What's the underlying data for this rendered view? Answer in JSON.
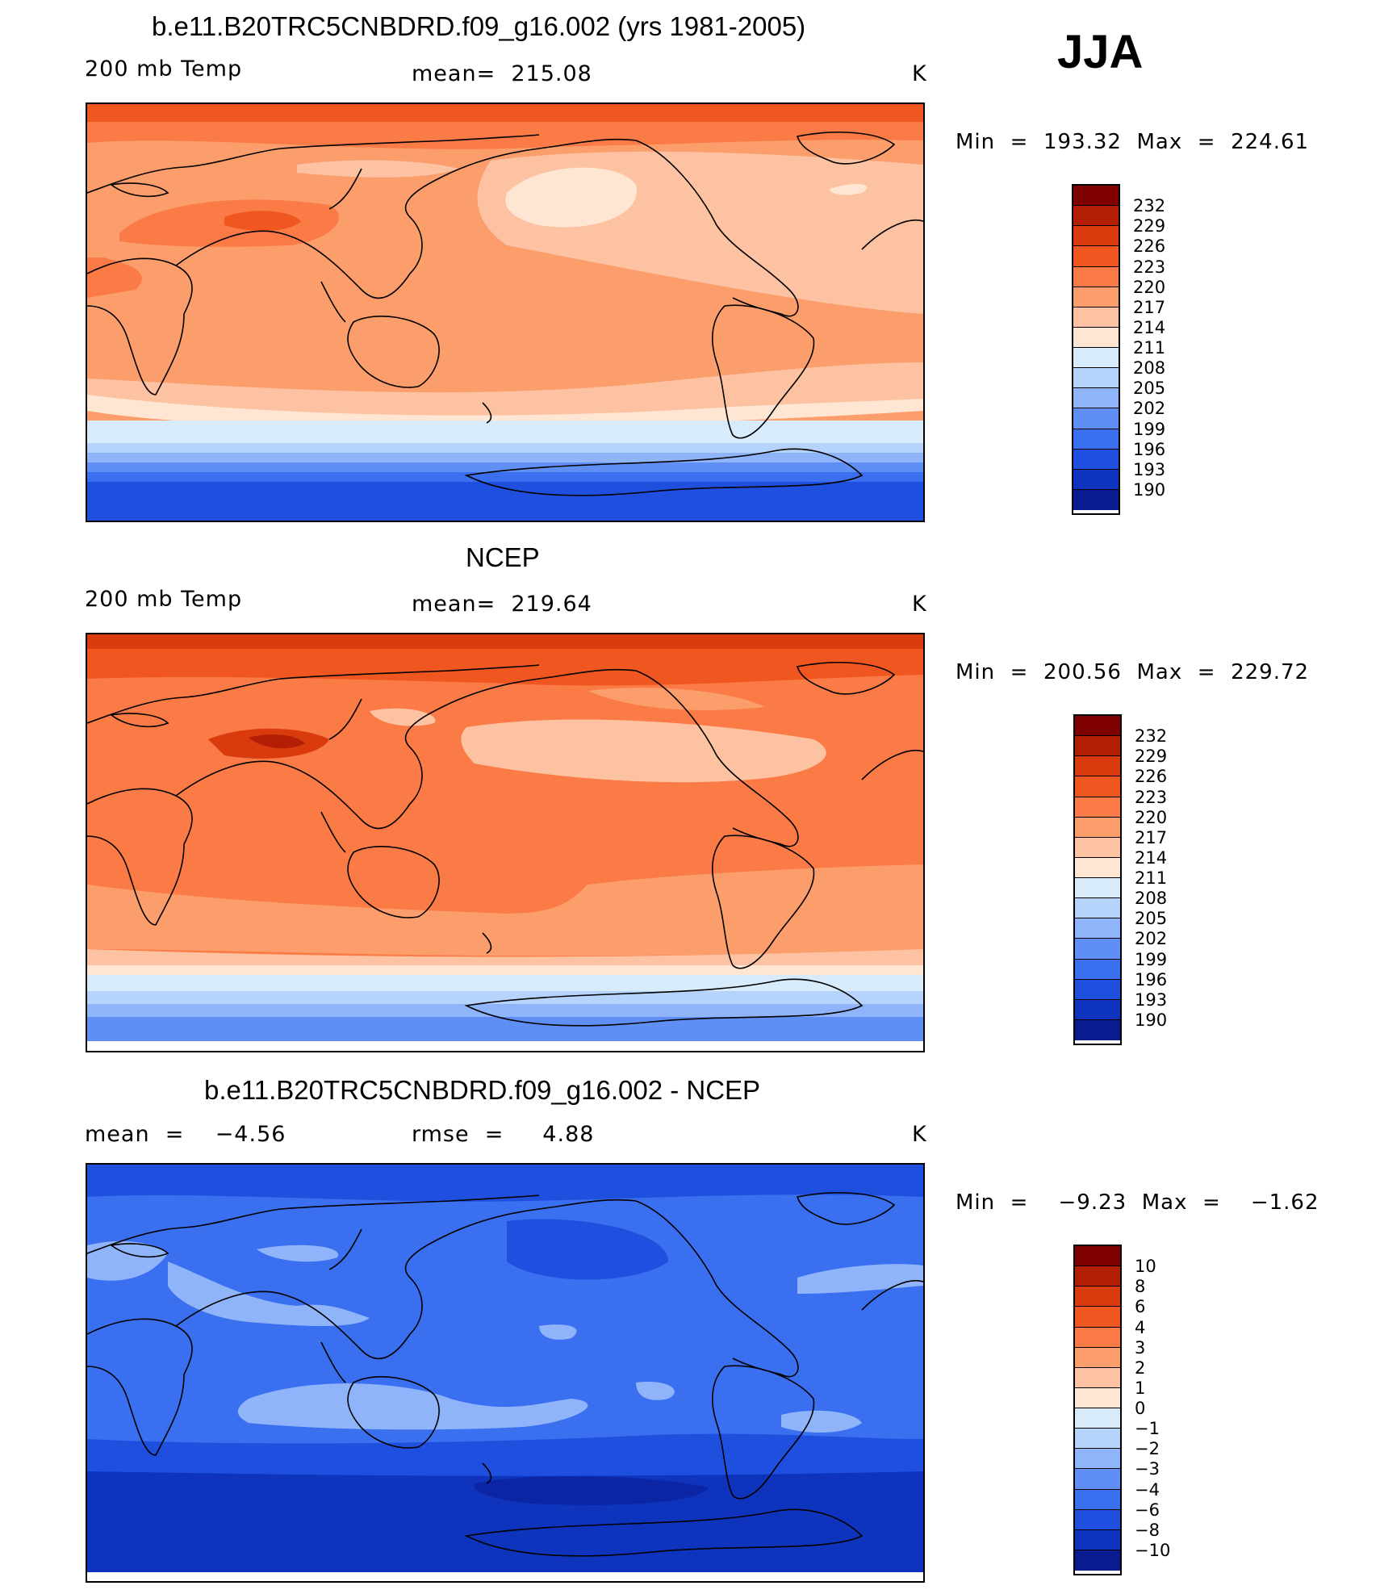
{
  "season": "JJA",
  "panels": [
    {
      "title": "b.e11.B20TRC5CNBDRD.f09_g16.002 (yrs 1981-2005)",
      "left_label": "200 mb Temp",
      "center_label": "mean=  215.08",
      "units": "K",
      "minmax": "Min  =  193.32  Max  =  224.61",
      "colorbar_labels": [
        "232",
        "229",
        "226",
        "223",
        "220",
        "217",
        "214",
        "211",
        "208",
        "205",
        "202",
        "199",
        "196",
        "193",
        "190"
      ]
    },
    {
      "title": "NCEP",
      "left_label": "200 mb Temp",
      "center_label": "mean=  219.64",
      "units": "K",
      "minmax": "Min  =  200.56  Max  =  229.72",
      "colorbar_labels": [
        "232",
        "229",
        "226",
        "223",
        "220",
        "217",
        "214",
        "211",
        "208",
        "205",
        "202",
        "199",
        "196",
        "193",
        "190"
      ]
    },
    {
      "title": "b.e11.B20TRC5CNBDRD.f09_g16.002 - NCEP",
      "left_label": "mean  =    −4.56",
      "center_label": "rmse  =     4.88",
      "units": "K",
      "minmax": "Min  =    −9.23  Max  =    −1.62",
      "colorbar_labels": [
        "10",
        "8",
        "6",
        "4",
        "3",
        "2",
        "1",
        "0",
        "−1",
        "−2",
        "−3",
        "−4",
        "−6",
        "−8",
        "−10"
      ]
    }
  ],
  "palette": [
    "#7f0000",
    "#b31e05",
    "#d93b0f",
    "#f0561f",
    "#fa7b45",
    "#fc9d6c",
    "#fdc2a2",
    "#fee6d2",
    "#d8ebfa",
    "#b6d4fb",
    "#8fb4fa",
    "#5f8ff5",
    "#3a6fef",
    "#1f4fde",
    "#0e34bd",
    "#0a1a8f"
  ]
}
